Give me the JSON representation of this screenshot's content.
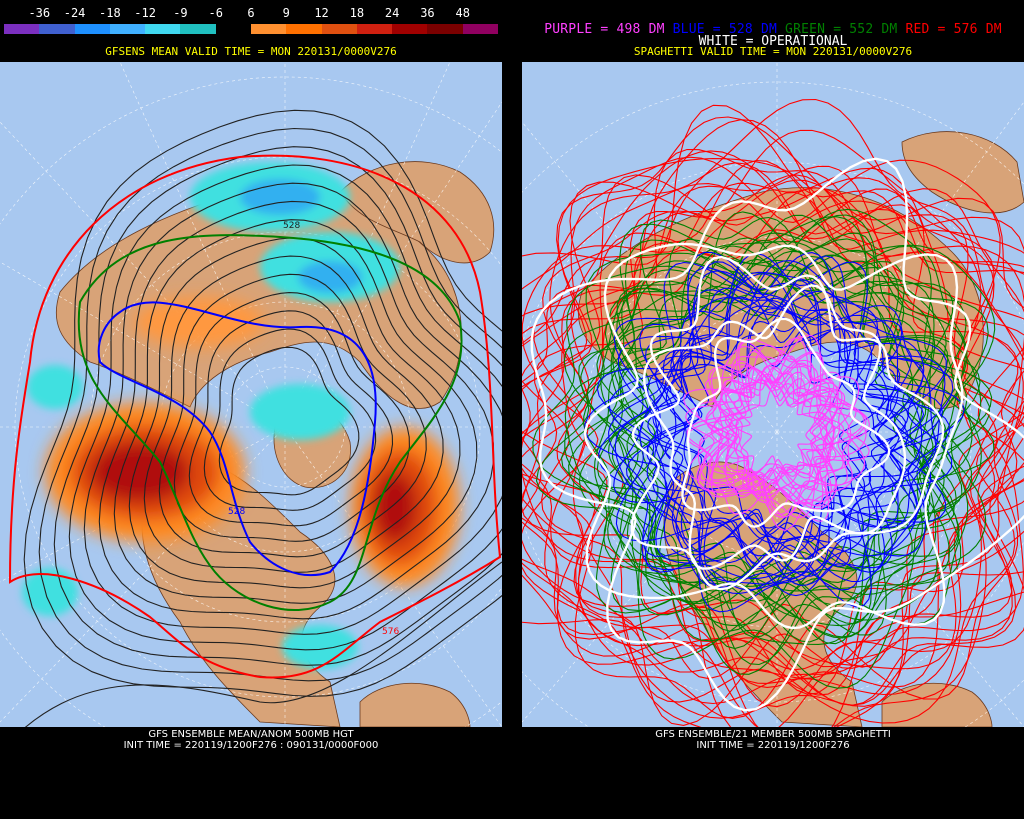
{
  "colors": {
    "ocean": "#a8c8f0",
    "land": "#d8a378",
    "grid": "#ffffff",
    "purple": "#ff40ff",
    "blue": "#0000ff",
    "green": "#008000",
    "red": "#ff0000",
    "white": "#ffffff",
    "contour": "#222222"
  },
  "left_panel": {
    "colorbar": {
      "tick_labels": [
        "-36",
        "-24",
        "-18",
        "-12",
        "-9",
        "-6",
        "6",
        "9",
        "12",
        "18",
        "24",
        "36",
        "48"
      ],
      "segment_colors": [
        "#7b2fbf",
        "#4060d0",
        "#1e90ff",
        "#40b0ff",
        "#40d8f0",
        "#20c0c0",
        "#000000",
        "#ff9030",
        "#ff7000",
        "#e05010",
        "#d02010",
        "#a00000",
        "#7a0000",
        "#900060"
      ]
    },
    "valid_time": "GFSENS MEAN VALID TIME = MON 220131/0000V276",
    "contour_labels": [
      "528",
      "528",
      "576"
    ],
    "footer_line1": "GFS ENSEMBLE MEAN/ANOM 500MB HGT",
    "footer_line2": "INIT TIME = 220119/1200F276 : 090131/0000F000"
  },
  "right_panel": {
    "legend": {
      "purple": "PURPLE = 498 DM",
      "blue": "BLUE = 528 DM",
      "green": "GREEN = 552 DM",
      "red": "RED = 576 DM",
      "white": "WHITE = OPERATIONAL"
    },
    "valid_time": "SPAGHETTI VALID TIME = MON 220131/0000V276",
    "footer_line1": "GFS ENSEMBLE/21 MEMBER 500MB SPAGHETTI",
    "footer_line2": "INIT TIME = 220119/1200F276"
  }
}
